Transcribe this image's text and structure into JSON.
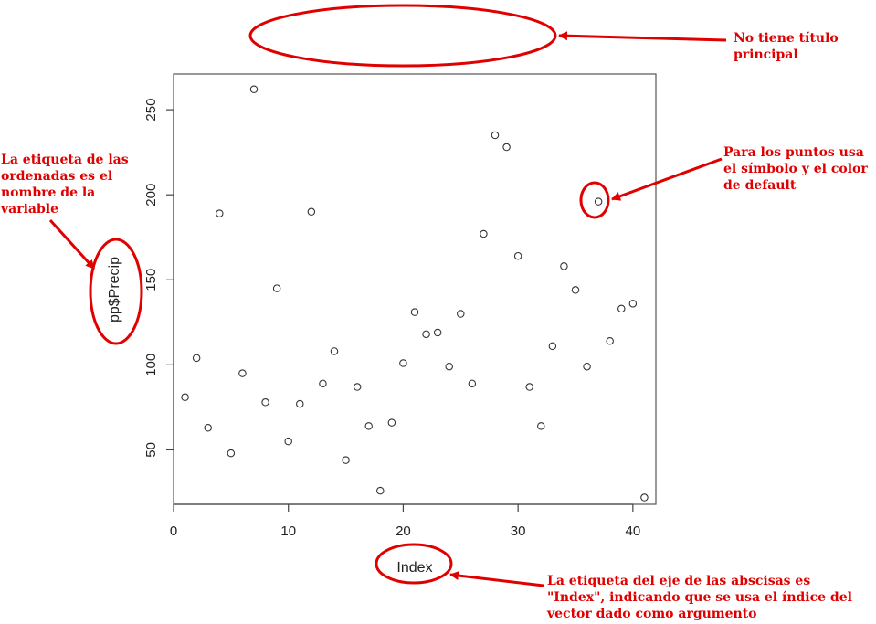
{
  "chart_data": {
    "type": "scatter",
    "title": "",
    "xlabel": "Index",
    "ylabel": "pp$Precip",
    "xlim": [
      0,
      42
    ],
    "ylim": [
      18,
      271
    ],
    "xticks": [
      0,
      10,
      20,
      30,
      40
    ],
    "yticks": [
      50,
      100,
      150,
      200,
      250
    ],
    "grid": false,
    "x": [
      1,
      2,
      3,
      4,
      5,
      6,
      7,
      8,
      9,
      10,
      11,
      12,
      13,
      14,
      15,
      16,
      17,
      18,
      19,
      20,
      21,
      22,
      23,
      24,
      25,
      26,
      27,
      28,
      29,
      30,
      31,
      32,
      33,
      34,
      35,
      36,
      37,
      38,
      39,
      40,
      41
    ],
    "y": [
      81,
      104,
      63,
      189,
      48,
      95,
      262,
      78,
      145,
      55,
      77,
      190,
      89,
      108,
      44,
      87,
      64,
      26,
      66,
      101,
      131,
      118,
      119,
      99,
      130,
      89,
      177,
      235,
      228,
      164,
      87,
      64,
      111,
      158,
      144,
      99,
      196,
      114,
      133,
      136,
      22
    ],
    "colors": {
      "axis": "#444444",
      "marker": "#333333",
      "annotation": "#e00000"
    }
  },
  "annotations": {
    "title_note": "No tiene título principal",
    "ylabel_note": "La etiqueta de las ordenadas es el nombre de la variable",
    "points_note": "Para los puntos usa el símbolo y el color de default",
    "xlabel_note": "La etiqueta del eje de las abscisas es \"Index\", indicando que se usa el índice del vector dado como argumento"
  }
}
